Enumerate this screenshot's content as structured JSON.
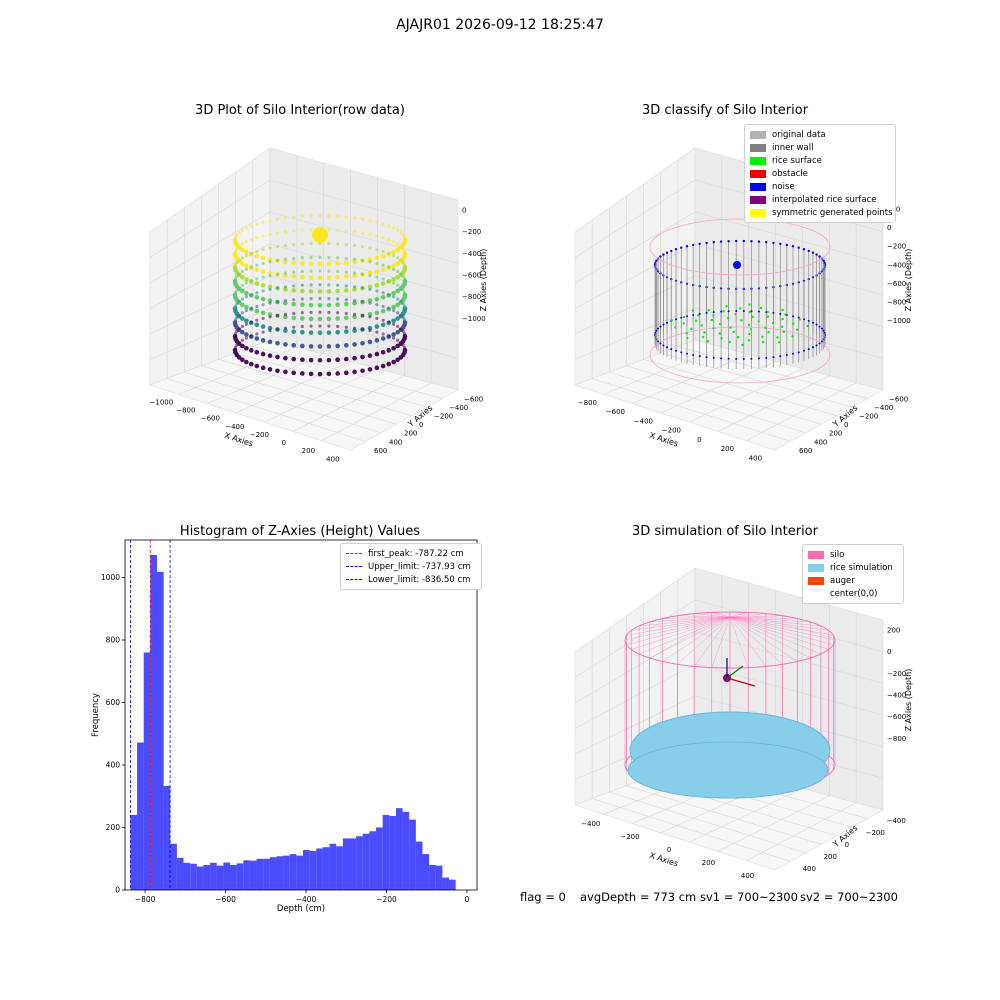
{
  "suptitle": "AJAJR01 2026-09-12 18:25:47",
  "panels": {
    "raw": {
      "title": "3D Plot of Silo Interior(row data)",
      "xlabel": "X Axies",
      "ylabel": "Y Axies",
      "zlabel": "Z Axies (Depth)",
      "xticks": [
        "−1000",
        "−800",
        "−600",
        "−400",
        "−200",
        "0",
        "200",
        "400"
      ],
      "yticks": [
        "−600",
        "−400",
        "−200",
        "0",
        "200",
        "400",
        "600"
      ],
      "zticks": [
        "0",
        "−200",
        "−400",
        "−600",
        "−800",
        "−1000"
      ]
    },
    "classify": {
      "title": "3D classify of Silo Interior",
      "xlabel": "X Axies",
      "ylabel": "Y Axies",
      "zlabel": "Z Axies (Depth)",
      "xticks": [
        "−800",
        "−600",
        "−400",
        "−200",
        "0",
        "200",
        "400"
      ],
      "yticks": [
        "−600",
        "−400",
        "−200",
        "0",
        "200",
        "400",
        "600"
      ],
      "zticks": [
        "200",
        "0",
        "−200",
        "−400",
        "−600",
        "−800",
        "−1000"
      ],
      "legend": [
        {
          "label": "original data",
          "color": "#b3b3b3"
        },
        {
          "label": "inner wall",
          "color": "#808080"
        },
        {
          "label": "rice surface",
          "color": "#00ee00"
        },
        {
          "label": "obstacle",
          "color": "#ee0000"
        },
        {
          "label": "noise",
          "color": "#0000ee"
        },
        {
          "label": "interpolated rice surface",
          "color": "#800080"
        },
        {
          "label": "symmetric generated points",
          "color": "#ffff00"
        }
      ]
    },
    "sim": {
      "title": "3D simulation of Silo Interior",
      "xlabel": "X Axies",
      "ylabel": "Y Axies",
      "zlabel": "Z Axies (Depth)",
      "xticks": [
        "−400",
        "−200",
        "0",
        "200",
        "400"
      ],
      "yticks": [
        "−400",
        "−200",
        "0",
        "200",
        "400"
      ],
      "zticks": [
        "200",
        "0",
        "−200",
        "−400",
        "−600",
        "−800"
      ],
      "legend": [
        {
          "label": "silo",
          "color": "#ff69b4"
        },
        {
          "label": "rice simulation",
          "color": "#87ceeb"
        },
        {
          "label": "auger",
          "color": "#ff4500"
        },
        {
          "label": "center(0,0)",
          "color": "#ffffff"
        }
      ]
    }
  },
  "chart_data": {
    "type": "bar",
    "title": "Histogram of Z-Axies (Height) Values",
    "xlabel": "Depth (cm)",
    "ylabel": "Frequency",
    "xlim": [
      -850,
      25
    ],
    "ylim": [
      0,
      1120
    ],
    "bin_width": 16.5,
    "bin_starts": [
      -836.5,
      -820,
      -803.5,
      -787,
      -770.5,
      -754,
      -737.5,
      -721,
      -704.5,
      -688,
      -671.5,
      -655,
      -638.5,
      -622,
      -605.5,
      -589,
      -572.5,
      -556,
      -539.5,
      -523,
      -506.5,
      -490,
      -473.5,
      -457,
      -440.5,
      -424,
      -407.5,
      -391,
      -374.5,
      -358,
      -341.5,
      -325,
      -308.5,
      -292,
      -275.5,
      -259,
      -242.5,
      -226,
      -209.5,
      -193,
      -176.5,
      -160,
      -143.5,
      -127,
      -110.5,
      -94,
      -77.5,
      -61,
      -44.5,
      -28
    ],
    "values": [
      240,
      472,
      760,
      1072,
      1018,
      333,
      148,
      103,
      87,
      84,
      75,
      80,
      87,
      78,
      88,
      80,
      85,
      95,
      94,
      100,
      100,
      105,
      108,
      110,
      115,
      110,
      128,
      125,
      133,
      137,
      148,
      140,
      165,
      165,
      172,
      180,
      188,
      200,
      240,
      237,
      262,
      250,
      225,
      155,
      115,
      80,
      78,
      40,
      33,
      0
    ],
    "series_color": "#0000ff",
    "xticks": [
      "−800",
      "−600",
      "−400",
      "−200",
      "0"
    ],
    "yticks": [
      "0",
      "200",
      "400",
      "600",
      "800",
      "1000"
    ],
    "vlines": [
      {
        "label": "first_peak: -787.22 cm",
        "x": -787.22,
        "color": "#ff0000"
      },
      {
        "label": "Upper_limit: -737.93 cm",
        "x": -737.93,
        "color": "#0000cc"
      },
      {
        "label": "Lower_limit: -836.50 cm",
        "x": -836.5,
        "color": "#0000cc"
      }
    ]
  },
  "footer": {
    "flag": "flag = 0",
    "avg_depth": "avgDepth = 773 cm",
    "sv1": "sv1 = 700~2300",
    "sv2": "sv2 = 700~2300"
  }
}
